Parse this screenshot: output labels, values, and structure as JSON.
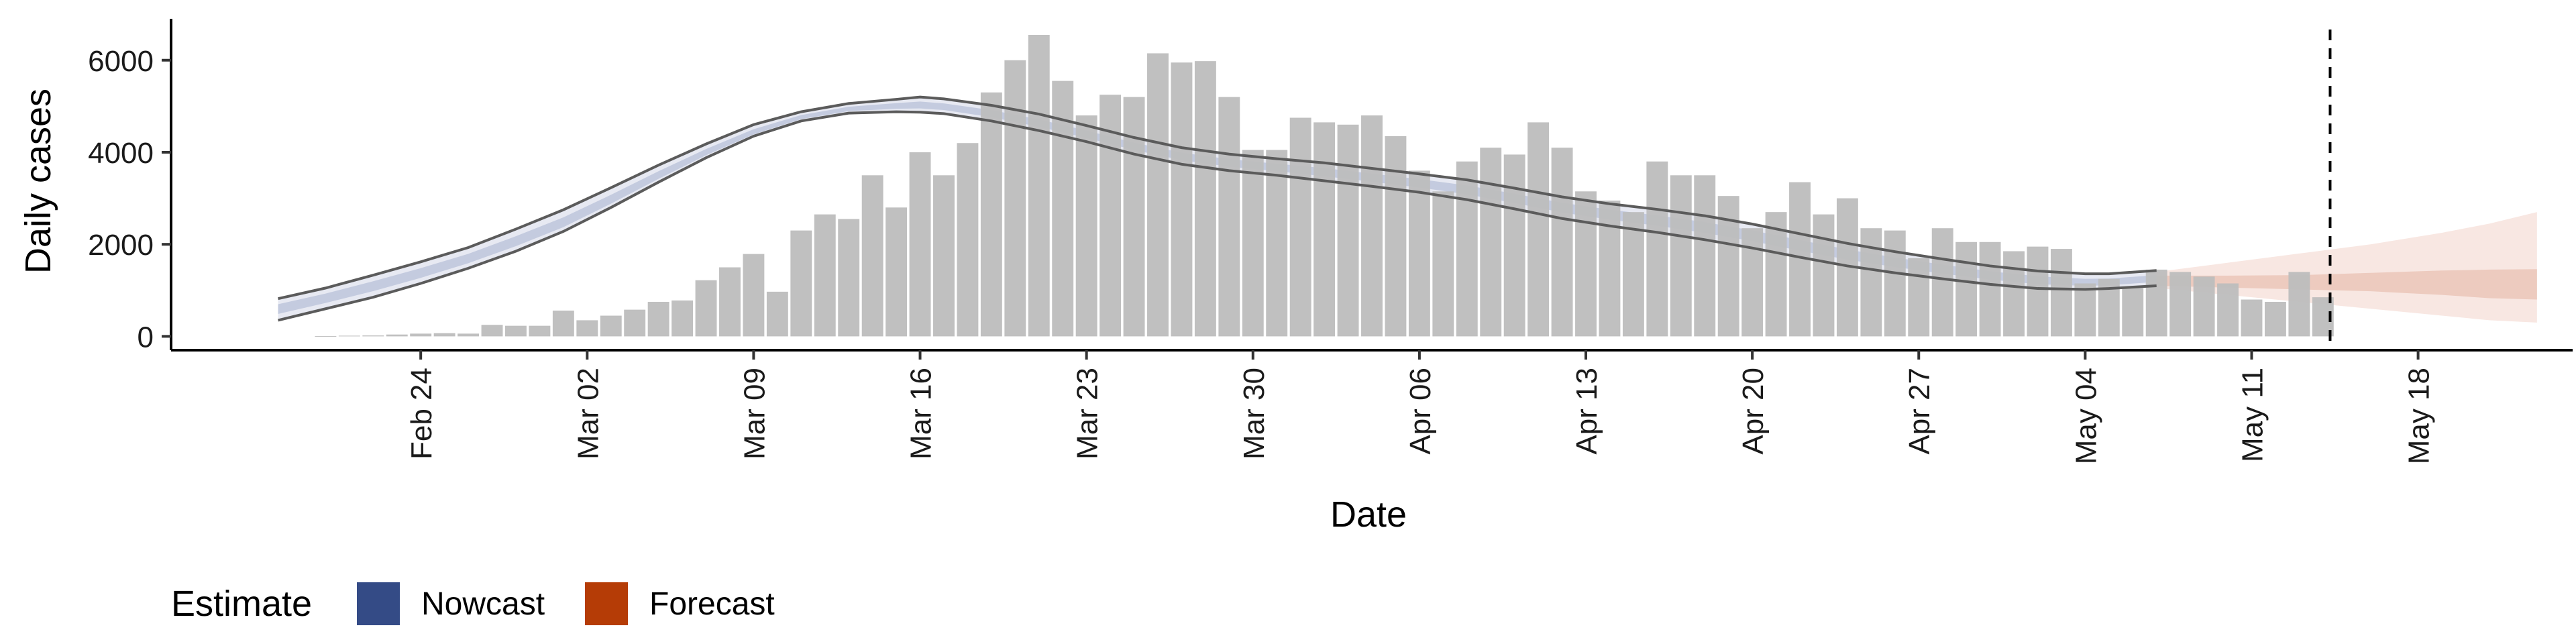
{
  "chart_data": {
    "type": "bar",
    "title": "",
    "xlabel": "Date",
    "ylabel": "Daily cases",
    "ylim": [
      -300,
      6900
    ],
    "yticks": [
      0,
      2000,
      4000,
      6000
    ],
    "ytick_labels": [
      "0",
      "2000",
      "4000",
      "6000"
    ],
    "x_start": "2020-02-20",
    "xlim_days": [
      -6.5,
      94.5
    ],
    "xticks": [
      {
        "day": 4,
        "label": "Feb 24"
      },
      {
        "day": 11,
        "label": "Mar 02"
      },
      {
        "day": 18,
        "label": "Mar 09"
      },
      {
        "day": 25,
        "label": "Mar 16"
      },
      {
        "day": 32,
        "label": "Mar 23"
      },
      {
        "day": 39,
        "label": "Mar 30"
      },
      {
        "day": 46,
        "label": "Apr 06"
      },
      {
        "day": 53,
        "label": "Apr 13"
      },
      {
        "day": 60,
        "label": "Apr 20"
      },
      {
        "day": 67,
        "label": "Apr 27"
      },
      {
        "day": 74,
        "label": "May 04"
      },
      {
        "day": 81,
        "label": "May 11"
      },
      {
        "day": 88,
        "label": "May 18"
      }
    ],
    "grid": false,
    "bar_color": "#bdbdbd",
    "reported_cases": [
      5,
      15,
      20,
      40,
      60,
      70,
      60,
      250,
      230,
      230,
      560,
      350,
      450,
      580,
      750,
      780,
      1220,
      1500,
      1790,
      970,
      2300,
      2650,
      2550,
      3500,
      2800,
      4000,
      3500,
      4200,
      5300,
      6000,
      6550,
      5550,
      4800,
      5250,
      5200,
      6150,
      5950,
      5980,
      5200,
      4050,
      4050,
      4750,
      4650,
      4600,
      4800,
      4350,
      3600,
      3150,
      3800,
      4100,
      3950,
      4650,
      4100,
      3150,
      2950,
      2700,
      3800,
      3500,
      3500,
      3050,
      2350,
      2700,
      3350,
      2650,
      3000,
      2350,
      2300,
      1700,
      2350,
      2050,
      2050,
      1850,
      1950,
      1900,
      1150,
      1250,
      1050,
      1450,
      1400,
      1300,
      1150,
      800,
      750,
      1400,
      850
    ],
    "nowcast": {
      "days": [
        -2,
        0,
        2,
        4,
        6,
        8,
        10,
        12,
        14,
        16,
        18,
        20,
        22,
        24,
        25,
        26,
        28,
        30,
        32,
        34,
        36,
        38,
        40,
        42,
        44,
        46,
        48,
        50,
        52,
        54,
        56,
        58,
        60,
        62,
        64,
        66,
        68,
        70,
        72,
        74,
        75,
        77
      ],
      "median": [
        600,
        830,
        1090,
        1370,
        1680,
        2050,
        2450,
        2950,
        3480,
        3980,
        4420,
        4750,
        4930,
        5000,
        5020,
        4980,
        4830,
        4620,
        4380,
        4120,
        3900,
        3760,
        3660,
        3560,
        3440,
        3320,
        3180,
        3000,
        2800,
        2650,
        2520,
        2370,
        2190,
        1980,
        1780,
        1610,
        1460,
        1320,
        1210,
        1160,
        1170,
        1250
      ],
      "lower": [
        350,
        600,
        850,
        1150,
        1480,
        1850,
        2280,
        2800,
        3350,
        3880,
        4350,
        4680,
        4850,
        4880,
        4870,
        4840,
        4680,
        4470,
        4230,
        3960,
        3740,
        3600,
        3500,
        3380,
        3260,
        3130,
        2970,
        2770,
        2560,
        2400,
        2260,
        2100,
        1920,
        1720,
        1530,
        1380,
        1250,
        1130,
        1040,
        1020,
        1040,
        1100
      ],
      "upper": [
        820,
        1050,
        1330,
        1620,
        1930,
        2330,
        2750,
        3230,
        3720,
        4180,
        4600,
        4880,
        5060,
        5150,
        5200,
        5160,
        5020,
        4830,
        4580,
        4320,
        4100,
        3960,
        3860,
        3770,
        3650,
        3530,
        3400,
        3220,
        3030,
        2880,
        2760,
        2620,
        2440,
        2230,
        2020,
        1840,
        1680,
        1530,
        1420,
        1360,
        1360,
        1430
      ]
    },
    "forecast": {
      "days": [
        77,
        80,
        83,
        86,
        89,
        91,
        93
      ],
      "median": [
        1200,
        1180,
        1170,
        1190,
        1220,
        1250,
        1260
      ],
      "lower": [
        1100,
        1060,
        1020,
        980,
        900,
        830,
        800
      ],
      "upper": [
        1320,
        1320,
        1330,
        1380,
        1430,
        1450,
        1460
      ],
      "lower90": [
        1050,
        900,
        750,
        600,
        450,
        350,
        300
      ],
      "upper90": [
        1400,
        1600,
        1800,
        2000,
        2250,
        2450,
        2700
      ]
    },
    "vline_day": 84.3,
    "legend": {
      "title": "Estimate",
      "position": "bottom-left",
      "items": [
        {
          "label": "Nowcast",
          "color": "#344b86"
        },
        {
          "label": "Forecast",
          "color": "#b53c06"
        }
      ]
    }
  }
}
